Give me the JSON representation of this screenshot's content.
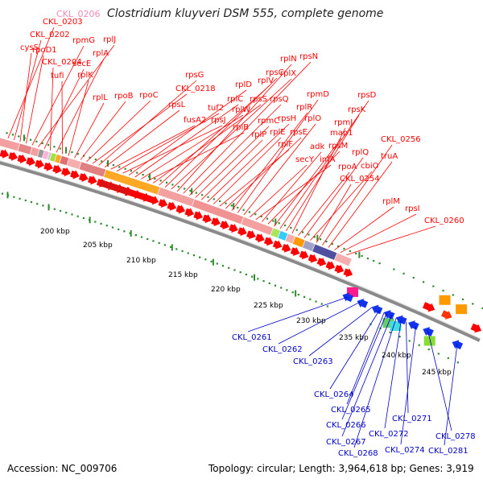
{
  "title": "Clostridium kluyveri DSM 555, complete genome",
  "header_tag": "CKL_0206",
  "footer": {
    "accession": "Accession: NC_009706",
    "summary": "Topology: circular; Length: 3,964,618 bp; Genes: 3,919"
  },
  "colors": {
    "forward_label": "#ff0000",
    "reverse_label": "#0000c8",
    "header_tag": "#f08ab8",
    "backbone": "#8a8a8a",
    "tick": "#2e8b2e"
  },
  "scale_labels": [
    "200 kbp",
    "205 kbp",
    "210 kbp",
    "215 kbp",
    "220 kbp",
    "225 kbp",
    "230 kbp",
    "235 kbp",
    "240 kbp",
    "245 kbp"
  ],
  "forward_labels": [
    "CKL_0203",
    "CKL_0202",
    "cysS",
    "rpoD1",
    "rpmG",
    "rplJ",
    "secE",
    "CKL_0204",
    "rplA",
    "tufi",
    "rplK",
    "rplL",
    "rpoB",
    "rpoC",
    "CKL_0218",
    "rpsG",
    "rpsL",
    "fusA2",
    "tuf2",
    "rpsJ",
    "rplD",
    "rplC",
    "rplW",
    "rplB",
    "rpsS",
    "rplV",
    "rpsC",
    "rplX",
    "rplN",
    "rpsN",
    "rpsQ",
    "rpmC",
    "rplP",
    "rpsH",
    "rplE",
    "rplF",
    "rpsE",
    "rplR",
    "rpmD",
    "rplO",
    "secY",
    "infA",
    "adk",
    "rpsM",
    "map1",
    "rpsD",
    "rpsK",
    "rpmJ",
    "rpoA",
    "rplQ",
    "cbiO",
    "CKL_0254",
    "CKL_0256",
    "truA",
    "rplM",
    "rpsI",
    "CKL_0260"
  ],
  "reverse_labels": [
    "CKL_0261",
    "CKL_0262",
    "CKL_0263",
    "CKL_0264",
    "CKL_0265",
    "CKL_0266",
    "CKL_0267",
    "CKL_0268",
    "CKL_0271",
    "CKL_0272",
    "CKL_0274",
    "CKL_0278",
    "CKL_0281"
  ]
}
